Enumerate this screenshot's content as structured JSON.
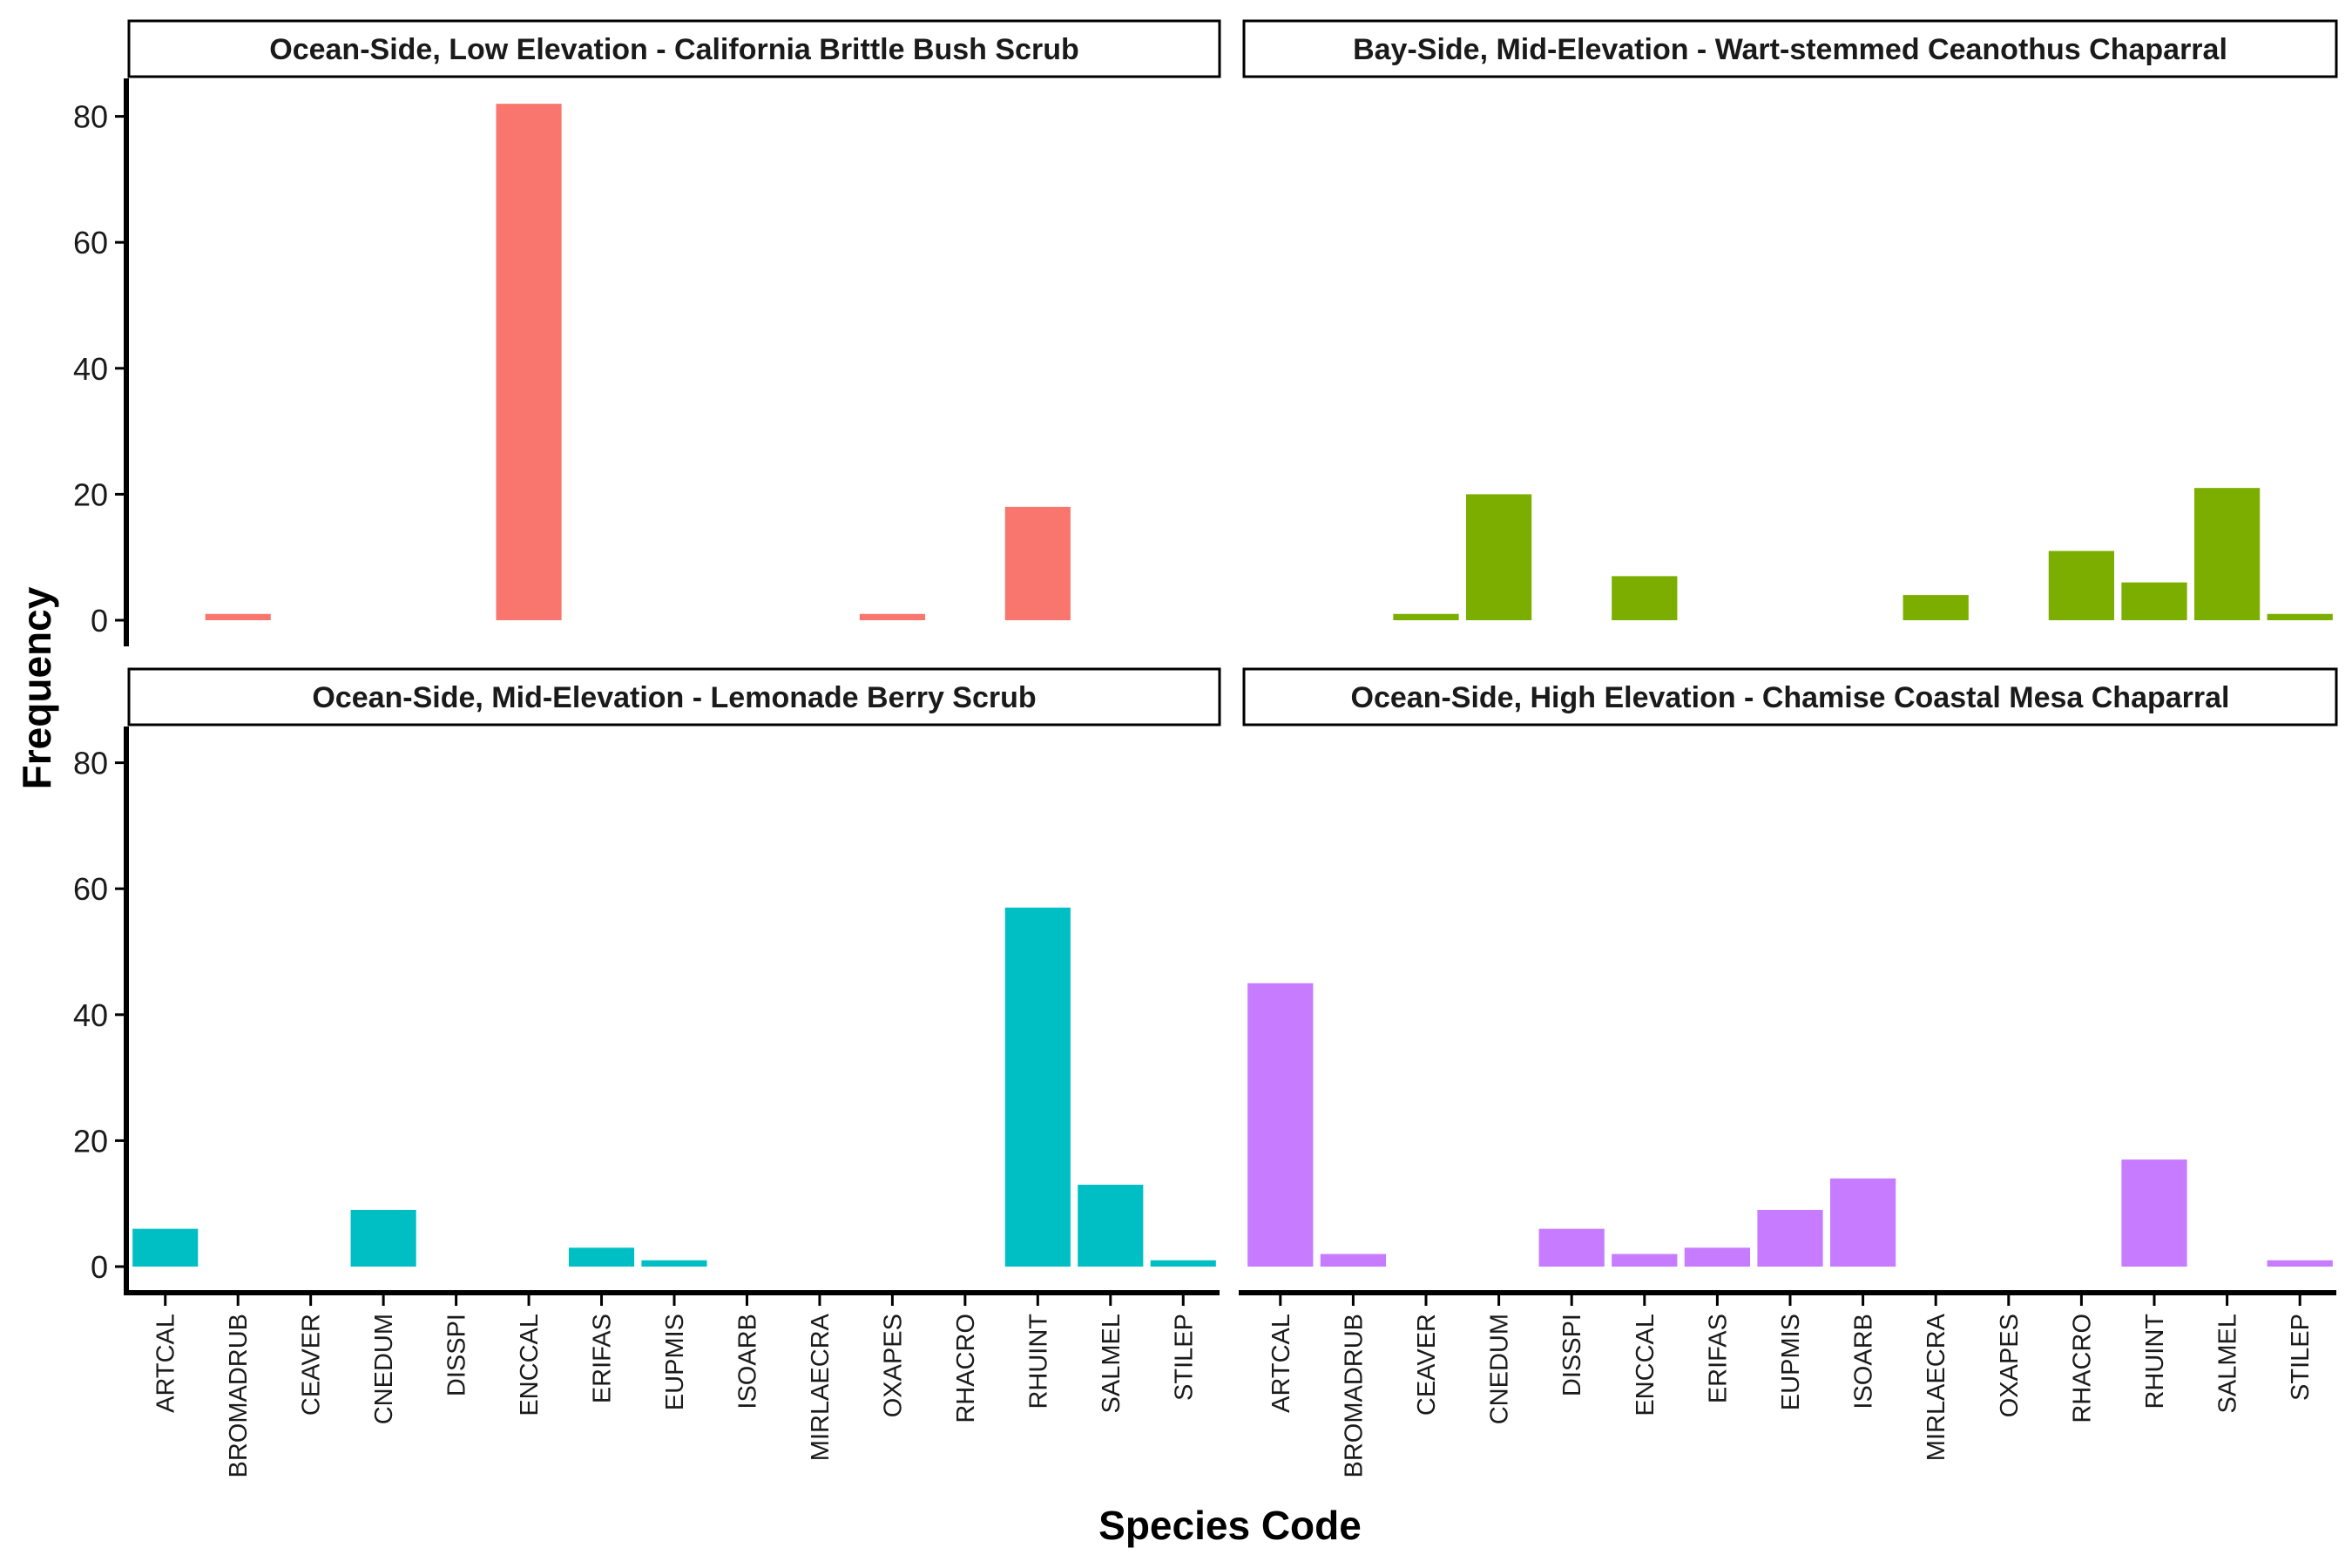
{
  "chart_data": {
    "type": "bar",
    "facet_layout": "2x2",
    "xlabel": "Species Code",
    "ylabel": "Frequency",
    "ylim": [
      0,
      85
    ],
    "yticks": [
      0,
      20,
      40,
      60,
      80
    ],
    "grid": false,
    "legend": "none",
    "categories": [
      "ARTCAL",
      "BROMADRUB",
      "CEAVER",
      "CNEDUM",
      "DISSPI",
      "ENCCAL",
      "ERIFAS",
      "EUPMIS",
      "ISOARB",
      "MIRLAECRA",
      "OXAPES",
      "RHACRO",
      "RHUINT",
      "SALMEL",
      "STILEP"
    ],
    "panels": [
      {
        "title": "Ocean-Side, Low Elevation - California Brittle Bush Scrub",
        "color": "#F8766D",
        "values": [
          0,
          1,
          0,
          0,
          0,
          82,
          0,
          0,
          0,
          0,
          1,
          0,
          18,
          0,
          0
        ]
      },
      {
        "title": "Bay-Side, Mid-Elevation - Wart-stemmed Ceanothus Chaparral",
        "color": "#7CAE00",
        "values": [
          0,
          0,
          1,
          20,
          0,
          7,
          0,
          0,
          0,
          4,
          0,
          11,
          6,
          21,
          1
        ]
      },
      {
        "title": "Ocean-Side, Mid-Elevation - Lemonade Berry Scrub",
        "color": "#00BFC4",
        "values": [
          6,
          0,
          0,
          9,
          0,
          0,
          3,
          1,
          0,
          0,
          0,
          0,
          57,
          13,
          1
        ]
      },
      {
        "title": "Ocean-Side, High Elevation - Chamise Coastal Mesa Chaparral",
        "color": "#C77CFF",
        "values": [
          45,
          2,
          0,
          0,
          6,
          2,
          3,
          9,
          14,
          0,
          0,
          0,
          17,
          0,
          1
        ]
      }
    ]
  }
}
